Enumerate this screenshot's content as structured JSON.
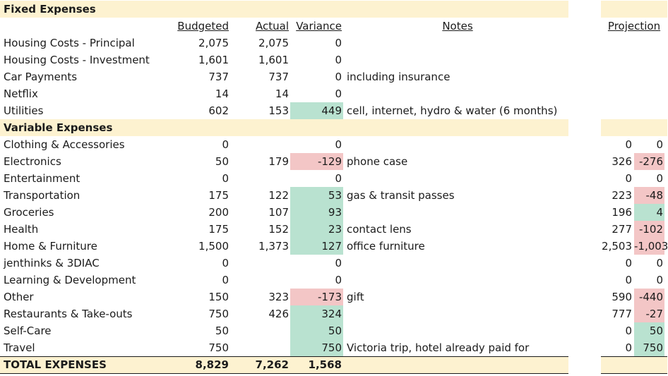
{
  "fixed": {
    "title": "Fixed Expenses",
    "headers": {
      "budgeted": "Budgeted",
      "actual": "Actual",
      "variance": "Variance",
      "notes": "Notes",
      "projection": "Projection"
    },
    "rows": [
      {
        "label": "Housing Costs - Principal",
        "budgeted": "2,075",
        "actual": "2,075",
        "variance": "0",
        "notes": "",
        "status": "none"
      },
      {
        "label": "Housing Costs - Investment",
        "budgeted": "1,601",
        "actual": "1,601",
        "variance": "0",
        "notes": "",
        "status": "none"
      },
      {
        "label": "Car Payments",
        "budgeted": "737",
        "actual": "737",
        "variance": "0",
        "notes": "including insurance",
        "status": "none"
      },
      {
        "label": "Netflix",
        "budgeted": "14",
        "actual": "14",
        "variance": "0",
        "notes": "",
        "status": "none"
      },
      {
        "label": "Utilities",
        "budgeted": "602",
        "actual": "153",
        "variance": "449",
        "notes": "cell, internet, hydro & water (6 months)",
        "status": "pos"
      }
    ]
  },
  "variable": {
    "title": "Variable Expenses",
    "rows": [
      {
        "label": "Clothing & Accessories",
        "budgeted": "0",
        "actual": "",
        "variance": "0",
        "notes": "",
        "status": "none",
        "proj_a": "0",
        "proj_b": "0",
        "proj_b_status": "none"
      },
      {
        "label": "Electronics",
        "budgeted": "50",
        "actual": "179",
        "variance": "-129",
        "notes": "phone case",
        "status": "neg",
        "proj_a": "326",
        "proj_b": "-276",
        "proj_b_status": "neg"
      },
      {
        "label": "Entertainment",
        "budgeted": "0",
        "actual": "",
        "variance": "0",
        "notes": "",
        "status": "none",
        "proj_a": "0",
        "proj_b": "0",
        "proj_b_status": "none"
      },
      {
        "label": "Transportation",
        "budgeted": "175",
        "actual": "122",
        "variance": "53",
        "notes": "gas & transit passes",
        "status": "pos",
        "proj_a": "223",
        "proj_b": "-48",
        "proj_b_status": "neg"
      },
      {
        "label": "Groceries",
        "budgeted": "200",
        "actual": "107",
        "variance": "93",
        "notes": "",
        "status": "pos",
        "proj_a": "196",
        "proj_b": "4",
        "proj_b_status": "pos"
      },
      {
        "label": "Health",
        "budgeted": "175",
        "actual": "152",
        "variance": "23",
        "notes": "contact lens",
        "status": "pos",
        "proj_a": "277",
        "proj_b": "-102",
        "proj_b_status": "neg"
      },
      {
        "label": "Home & Furniture",
        "budgeted": "1,500",
        "actual": "1,373",
        "variance": "127",
        "notes": "office furniture",
        "status": "pos",
        "proj_a": "2,503",
        "proj_b": "-1,003",
        "proj_b_status": "neg"
      },
      {
        "label": "jenthinks & 3DIAC",
        "budgeted": "0",
        "actual": "",
        "variance": "0",
        "notes": "",
        "status": "none",
        "proj_a": "0",
        "proj_b": "0",
        "proj_b_status": "none"
      },
      {
        "label": "Learning & Development",
        "budgeted": "0",
        "actual": "",
        "variance": "0",
        "notes": "",
        "status": "none",
        "proj_a": "0",
        "proj_b": "0",
        "proj_b_status": "none"
      },
      {
        "label": "Other",
        "budgeted": "150",
        "actual": "323",
        "variance": "-173",
        "notes": "gift",
        "status": "neg",
        "proj_a": "590",
        "proj_b": "-440",
        "proj_b_status": "neg"
      },
      {
        "label": "Restaurants & Take-outs",
        "budgeted": "750",
        "actual": "426",
        "variance": "324",
        "notes": "",
        "status": "pos",
        "proj_a": "777",
        "proj_b": "-27",
        "proj_b_status": "neg"
      },
      {
        "label": "Self-Care",
        "budgeted": "50",
        "actual": "",
        "variance": "50",
        "notes": "",
        "status": "pos",
        "proj_a": "0",
        "proj_b": "50",
        "proj_b_status": "pos"
      },
      {
        "label": "Travel",
        "budgeted": "750",
        "actual": "",
        "variance": "750",
        "notes": "Victoria trip, hotel already paid for",
        "status": "pos",
        "proj_a": "0",
        "proj_b": "750",
        "proj_b_status": "pos"
      }
    ]
  },
  "total": {
    "label": "TOTAL EXPENSES",
    "budgeted": "8,829",
    "actual": "7,262",
    "variance": "1,568"
  },
  "colors": {
    "section_band": "#fdf2d0",
    "positive_variance": "#b9e2d0",
    "negative_variance": "#f3c6c6"
  }
}
